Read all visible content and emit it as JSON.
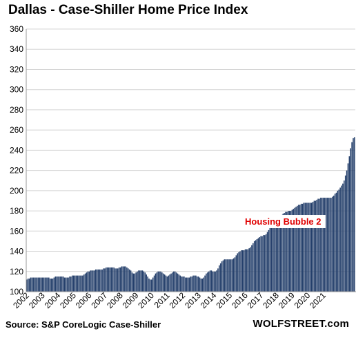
{
  "chart_data": {
    "type": "bar",
    "title": "Dallas - Case-Shiller Home Price Index",
    "xlabel": "",
    "ylabel": "",
    "ylim": [
      100,
      360
    ],
    "yticks": [
      100,
      120,
      140,
      160,
      180,
      200,
      220,
      240,
      260,
      280,
      300,
      320,
      340,
      360
    ],
    "xticks": [
      "2002",
      "2003",
      "2004",
      "2005",
      "2006",
      "2007",
      "2008",
      "2009",
      "2010",
      "2011",
      "2012",
      "2013",
      "2014",
      "2015",
      "2016",
      "2017",
      "2018",
      "2019",
      "2020",
      "2021"
    ],
    "grid": true,
    "bar_color": "#243f6b",
    "annotation": {
      "text": "Housing Bubble 2",
      "color": "#e00000"
    },
    "source": "Source: S&P CoreLogic Case-Shiller",
    "brand": "WOLFSTREET.com",
    "monthly_values": [
      112,
      113,
      113,
      114,
      114,
      114,
      114,
      114,
      114,
      114,
      114,
      114,
      114,
      114,
      114,
      114,
      114,
      114,
      113,
      113,
      113,
      114,
      115,
      115,
      115,
      115,
      115,
      115,
      115,
      114,
      114,
      114,
      114,
      115,
      115,
      116,
      116,
      116,
      116,
      116,
      116,
      116,
      116,
      116,
      117,
      118,
      119,
      120,
      120,
      121,
      121,
      121,
      121,
      122,
      122,
      122,
      122,
      122,
      122,
      123,
      123,
      124,
      124,
      124,
      124,
      124,
      124,
      124,
      123,
      123,
      123,
      124,
      124,
      125,
      125,
      125,
      125,
      124,
      123,
      122,
      121,
      119,
      118,
      118,
      119,
      120,
      121,
      121,
      121,
      121,
      120,
      119,
      117,
      115,
      113,
      112,
      112,
      114,
      116,
      118,
      119,
      120,
      120,
      120,
      119,
      118,
      117,
      116,
      115,
      116,
      117,
      118,
      119,
      120,
      120,
      119,
      118,
      117,
      116,
      115,
      115,
      115,
      114,
      114,
      114,
      114,
      115,
      115,
      116,
      116,
      116,
      115,
      115,
      114,
      113,
      113,
      114,
      116,
      118,
      119,
      120,
      121,
      121,
      120,
      120,
      120,
      121,
      123,
      126,
      128,
      130,
      131,
      132,
      132,
      132,
      132,
      132,
      132,
      132,
      133,
      134,
      136,
      138,
      139,
      140,
      141,
      141,
      141,
      142,
      142,
      142,
      143,
      144,
      146,
      148,
      150,
      151,
      152,
      153,
      154,
      155,
      155,
      156,
      156,
      157,
      159,
      161,
      163,
      164,
      165,
      165,
      166,
      167,
      169,
      171,
      174,
      176,
      177,
      178,
      179,
      179,
      180,
      180,
      180,
      181,
      182,
      183,
      184,
      185,
      186,
      186,
      187,
      187,
      188,
      188,
      188,
      188,
      188,
      188,
      188,
      189,
      190,
      190,
      191,
      192,
      192,
      193,
      193,
      193,
      193,
      193,
      193,
      193,
      193,
      193,
      194,
      195,
      197,
      198,
      200,
      201,
      203,
      205,
      207,
      210,
      215,
      220,
      227,
      234,
      242,
      248,
      252,
      253
    ]
  }
}
